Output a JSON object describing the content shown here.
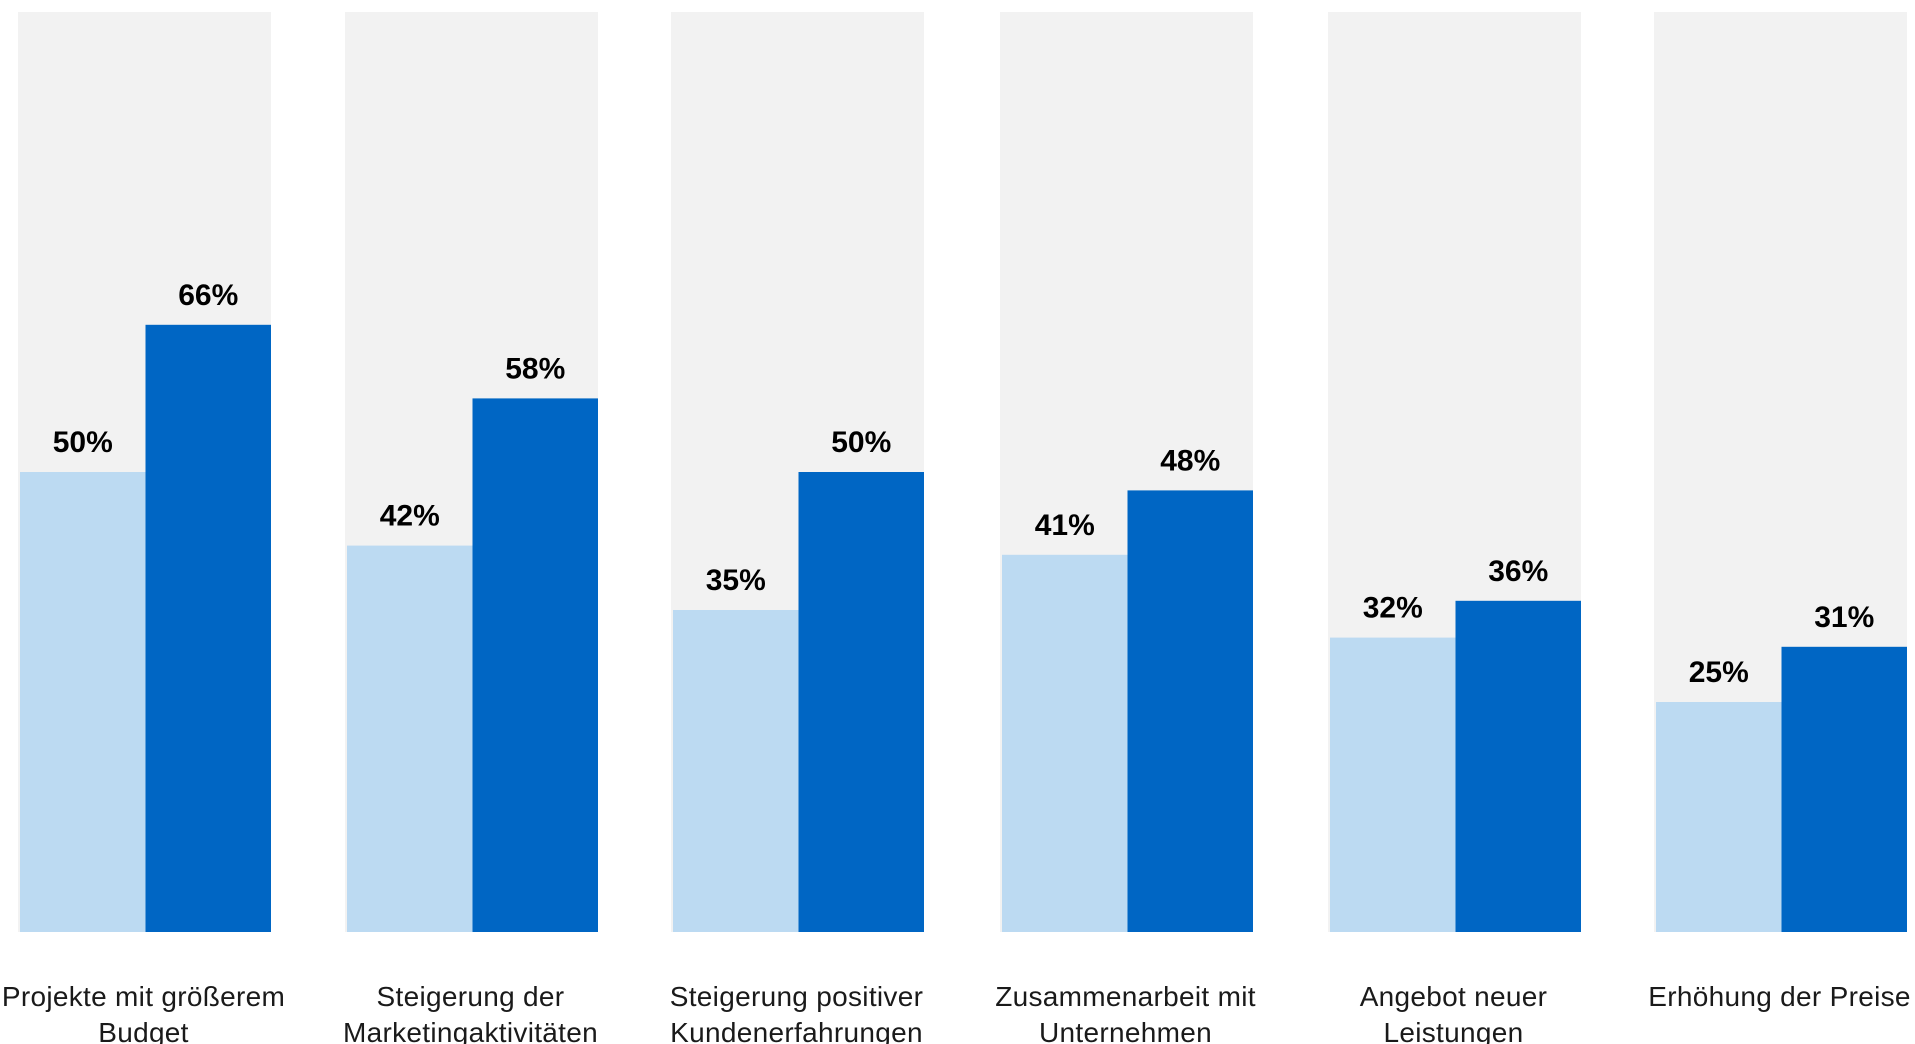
{
  "chart_data": {
    "type": "bar",
    "title": "",
    "xlabel": "",
    "ylabel": "",
    "ylim": [
      0,
      100
    ],
    "grid": false,
    "legend": false,
    "categories": [
      [
        "Projekte mit größerem",
        "Budget"
      ],
      [
        "Steigerung der",
        "Marketingaktivitäten"
      ],
      [
        "Steigerung positiver",
        "Kundenerfahrungen"
      ],
      [
        "Zusammenarbeit mit",
        "Unternehmen"
      ],
      [
        "Angebot neuer",
        "Leistungen"
      ],
      [
        "Erhöhung der Preise"
      ]
    ],
    "series": [
      {
        "color": "#bcdaf2",
        "values": [
          50,
          42,
          35,
          41,
          32,
          25
        ],
        "value_labels": [
          "50%",
          "42%",
          "35%",
          "41%",
          "32%",
          "25%"
        ]
      },
      {
        "color": "#0066c4",
        "values": [
          66,
          58,
          50,
          48,
          36,
          31
        ],
        "value_labels": [
          "66%",
          "58%",
          "50%",
          "48%",
          "36%",
          "31%"
        ]
      }
    ],
    "background_column_color": "#f2f2f2"
  }
}
